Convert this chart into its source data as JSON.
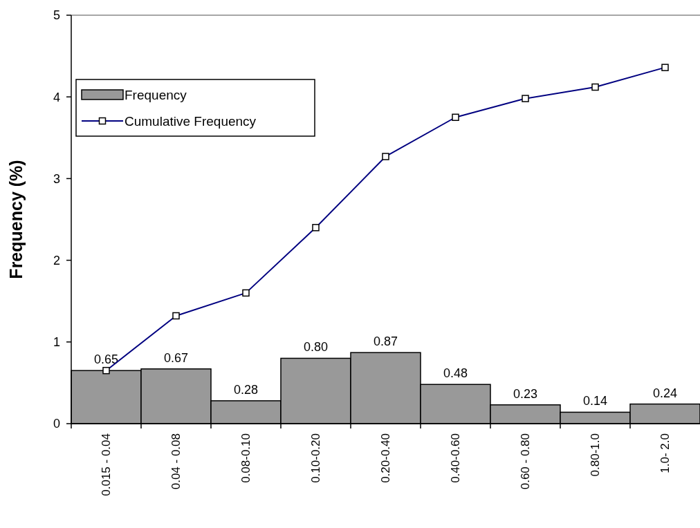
{
  "chart_data": {
    "type": "bar",
    "ylabel": "Frequency (%)",
    "categories": [
      "0.015 - 0.04",
      "0.04 - 0.08",
      "0.08-0.10",
      "0.10-0.20",
      "0.20-0.40",
      "0.40-0.60",
      "0.60 - 0.80",
      "0.80-1.0",
      "1.0- 2.0"
    ],
    "series": [
      {
        "name": "Frequency",
        "color": "#999999",
        "values": [
          0.65,
          0.67,
          0.28,
          0.8,
          0.87,
          0.48,
          0.23,
          0.14,
          0.24
        ],
        "value_labels": [
          "0.65",
          "0.67",
          "0.28",
          "0.80",
          "0.87",
          "0.48",
          "0.23",
          "0.14",
          "0.24"
        ]
      },
      {
        "name": "Cumulative Frequency",
        "type": "line",
        "color": "#000080",
        "marker": "square",
        "values": [
          0.65,
          1.32,
          1.6,
          2.4,
          3.27,
          3.75,
          3.98,
          4.12,
          4.36
        ]
      }
    ],
    "ylim": [
      0,
      5
    ],
    "yticks": [
      0,
      1,
      2,
      3,
      4,
      5
    ],
    "grid": false,
    "legend": "top left"
  }
}
